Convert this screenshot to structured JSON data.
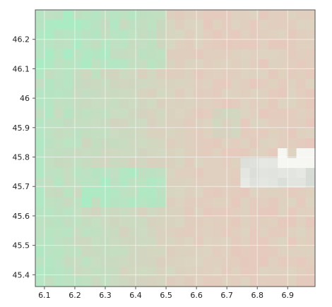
{
  "map": {
    "type": "raster-tile-grid",
    "x_axis": {
      "range": [
        6.07,
        6.99
      ],
      "ticks": [
        6.1,
        6.2,
        6.3,
        6.4,
        6.5,
        6.6,
        6.7,
        6.8,
        6.9
      ],
      "tick_labels": [
        "6.1",
        "6.2",
        "6.3",
        "6.4",
        "6.5",
        "6.6",
        "6.7",
        "6.8",
        "6.9"
      ]
    },
    "y_axis": {
      "range": [
        45.36,
        46.3
      ],
      "ticks": [
        45.4,
        45.5,
        45.6,
        45.7,
        45.8,
        45.9,
        46.0,
        46.1,
        46.2
      ],
      "tick_labels": [
        "45.4",
        "45.5",
        "45.6",
        "45.7",
        "45.8",
        "45.9",
        "46",
        "46.1",
        "46.2"
      ]
    },
    "grid": true,
    "colors": {
      "green": "#a8ecc4",
      "pink": "#e8c6bc",
      "beige": "#dcd4c0",
      "gray": "#d8dcd6",
      "white": "#f6f6f2",
      "frame": "#555555",
      "label": "#222222"
    }
  }
}
